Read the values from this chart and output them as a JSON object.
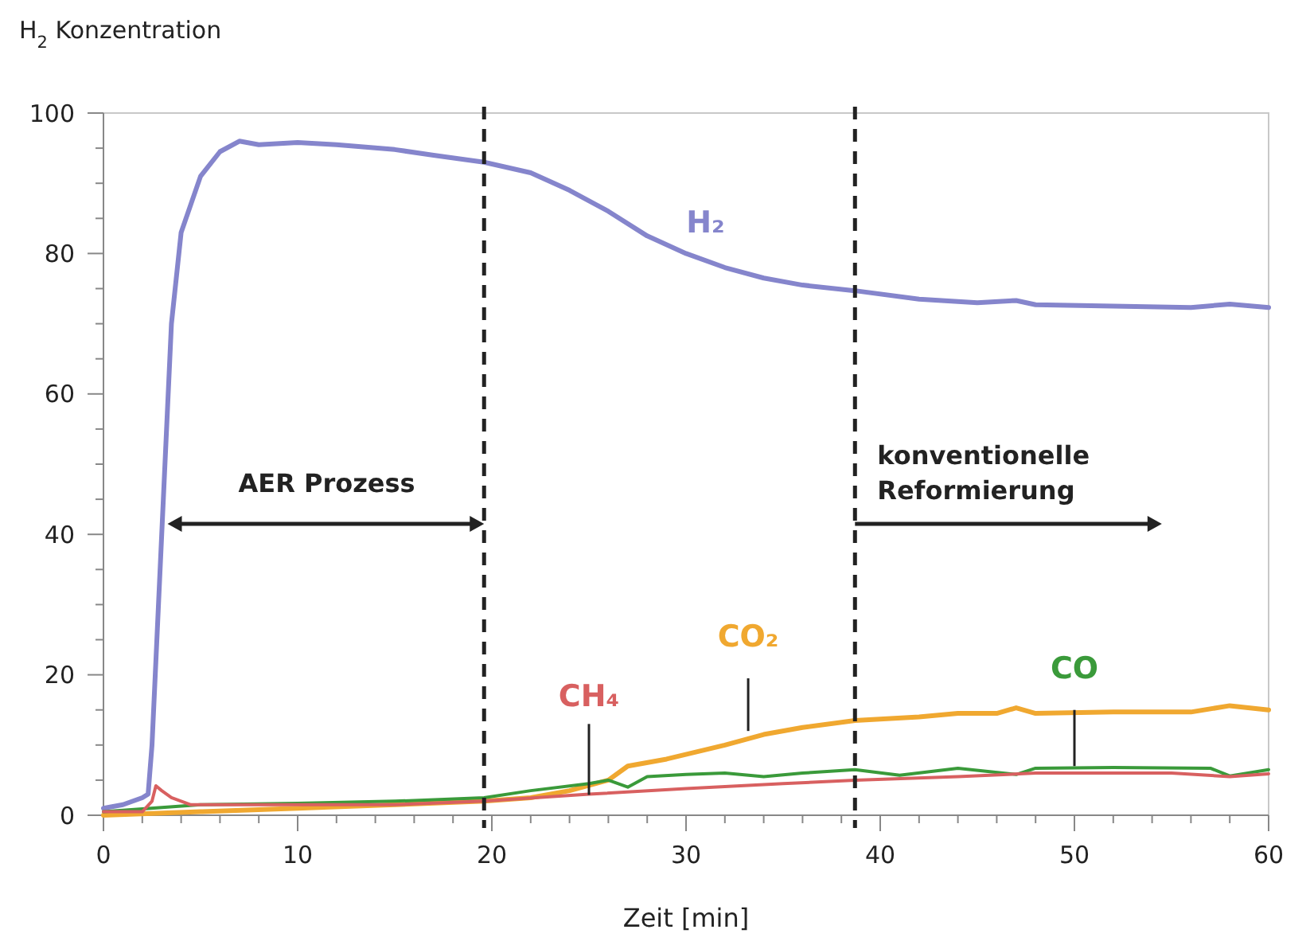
{
  "chart_data": {
    "type": "line",
    "ylabel": "H$_{2}$ Konzentration",
    "xlabel": "Zeit [min]",
    "xlim": [
      0,
      60
    ],
    "ylim": [
      0,
      100
    ],
    "xticks": [
      0,
      {
        "value": 2,
        "label": null
      },
      {
        "value": 4,
        "label": null
      },
      {
        "value": 6,
        "label": null
      },
      {
        "value": 8,
        "label": null
      },
      10,
      {
        "value": 12,
        "label": null
      },
      {
        "value": 14,
        "label": null
      },
      {
        "value": 16,
        "label": null
      },
      {
        "value": 18,
        "label": null
      },
      20,
      {
        "value": 22,
        "label": null
      },
      {
        "value": 24,
        "label": null
      },
      {
        "value": 26,
        "label": null
      },
      {
        "value": 28,
        "label": null
      },
      30,
      {
        "value": 32,
        "label": null
      },
      {
        "value": 34,
        "label": null
      },
      {
        "value": 36,
        "label": null
      },
      {
        "value": 38,
        "label": null
      },
      40,
      {
        "value": 42,
        "label": null
      },
      {
        "value": 44,
        "label": null
      },
      {
        "value": 46,
        "label": null
      },
      {
        "value": 48,
        "label": null
      },
      50,
      {
        "value": 52,
        "label": null
      },
      {
        "value": 54,
        "label": null
      },
      {
        "value": 56,
        "label": null
      },
      {
        "value": 58,
        "label": null
      },
      60
    ],
    "yticks": [
      0,
      {
        "value": 5,
        "label": null
      },
      {
        "value": 10,
        "label": null
      },
      {
        "value": 15,
        "label": null
      },
      20,
      {
        "value": 25,
        "label": null
      },
      {
        "value": 30,
        "label": null
      },
      {
        "value": 35,
        "label": null
      },
      40,
      {
        "value": 45,
        "label": null
      },
      {
        "value": 50,
        "label": null
      },
      {
        "value": 55,
        "label": null
      },
      60,
      {
        "value": 65,
        "label": null
      },
      {
        "value": 70,
        "label": null
      },
      {
        "value": 75,
        "label": null
      },
      80,
      {
        "value": 85,
        "label": null
      },
      {
        "value": 90,
        "label": null
      },
      {
        "value": 95,
        "label": null
      },
      100
    ],
    "grid": false,
    "line_style": "solid",
    "series": [
      {
        "name": "H₂",
        "color": "#8585cc",
        "x": [
          0,
          1,
          2,
          2.3,
          2.5,
          3,
          3.5,
          4,
          5,
          6,
          7,
          8,
          10,
          12,
          15,
          17,
          19.6,
          22,
          24,
          26,
          28,
          30,
          32,
          34,
          36,
          38.7,
          42,
          45,
          47,
          48,
          52,
          56,
          58,
          60
        ],
        "values": [
          1,
          1.5,
          2.5,
          3,
          10,
          40,
          70,
          83,
          91,
          94.5,
          96,
          95.5,
          95.8,
          95.5,
          94.8,
          94,
          93,
          91.5,
          89,
          86,
          82.5,
          80,
          78,
          76.5,
          75.5,
          74.7,
          73.5,
          73,
          73.3,
          72.7,
          72.5,
          72.3,
          72.8,
          72.3
        ]
      },
      {
        "name": "CO₂",
        "color": "#f0a830",
        "x": [
          0,
          5,
          10,
          15,
          19.6,
          22,
          24,
          26,
          27,
          29,
          32,
          34,
          36,
          38.7,
          42,
          44,
          46,
          47,
          48,
          52,
          56,
          58,
          60
        ],
        "values": [
          0,
          0.5,
          1,
          1.5,
          2,
          2.5,
          3.5,
          5,
          7,
          8,
          10,
          11.5,
          12.5,
          13.5,
          14,
          14.5,
          14.5,
          15.3,
          14.5,
          14.7,
          14.7,
          15.6,
          15
        ]
      },
      {
        "name": "CO",
        "color": "#3a9a3a",
        "x": [
          0,
          5,
          10,
          15,
          19.6,
          22,
          25,
          26,
          27,
          28,
          30,
          32,
          34,
          36,
          38.7,
          41,
          44,
          47,
          48,
          52,
          57,
          58,
          60
        ],
        "values": [
          0.5,
          1.5,
          1.7,
          2,
          2.5,
          3.5,
          4.5,
          5,
          4,
          5.5,
          5.8,
          6,
          5.5,
          6,
          6.5,
          5.7,
          6.7,
          5.8,
          6.7,
          6.8,
          6.7,
          5.6,
          6.5
        ]
      },
      {
        "name": "CH₄",
        "color": "#d86060",
        "x": [
          0,
          2,
          2.5,
          2.7,
          3,
          3.5,
          4.5,
          10,
          15,
          19.6,
          25,
          30,
          35,
          38.7,
          44,
          48,
          55,
          58,
          60
        ],
        "values": [
          0.5,
          0.5,
          2,
          4.2,
          3.5,
          2.5,
          1.5,
          1.5,
          1.5,
          2,
          3,
          3.8,
          4.5,
          5,
          5.5,
          6,
          6,
          5.5,
          5.9
        ]
      }
    ],
    "ref_lines": [
      {
        "axis": "x",
        "value": 19.6,
        "line_style": "dashed",
        "color": "#222222"
      },
      {
        "axis": "x",
        "value": 38.7,
        "line_style": "dashed",
        "color": "#222222"
      }
    ],
    "annotations": [
      "AER Prozess",
      "konventionelle\nReformierung"
    ]
  }
}
